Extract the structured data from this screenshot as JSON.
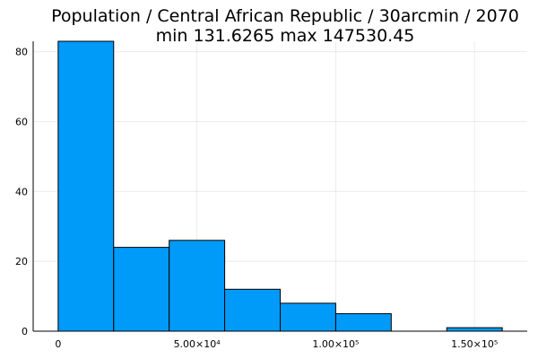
{
  "chart_data": {
    "type": "bar",
    "title": "Population / Central African Republic / 30arcmin / 2070",
    "subtitle": "min 131.6265  max 147530.45",
    "xlabel": "",
    "ylabel": "",
    "bins": [
      {
        "x0": 0,
        "x1": 20000,
        "count": 83
      },
      {
        "x0": 20000,
        "x1": 40000,
        "count": 24
      },
      {
        "x0": 40000,
        "x1": 60000,
        "count": 26
      },
      {
        "x0": 60000,
        "x1": 80000,
        "count": 12
      },
      {
        "x0": 80000,
        "x1": 100000,
        "count": 8
      },
      {
        "x0": 100000,
        "x1": 120000,
        "count": 5
      },
      {
        "x0": 120000,
        "x1": 140000,
        "count": 0
      },
      {
        "x0": 140000,
        "x1": 160000,
        "count": 1
      }
    ],
    "xlim": [
      -9000,
      169000
    ],
    "ylim": [
      0,
      83
    ],
    "x_ticks": [
      {
        "value": 0,
        "label": "0"
      },
      {
        "value": 50000,
        "label": "5.00×10⁴"
      },
      {
        "value": 100000,
        "label": "1.00×10⁵"
      },
      {
        "value": 150000,
        "label": "1.50×10⁵"
      }
    ],
    "y_ticks": [
      {
        "value": 0,
        "label": "0"
      },
      {
        "value": 20,
        "label": "20"
      },
      {
        "value": 40,
        "label": "40"
      },
      {
        "value": 60,
        "label": "60"
      },
      {
        "value": 80,
        "label": "80"
      }
    ],
    "grid": true,
    "legend": false,
    "bar_color": "#009af9"
  }
}
